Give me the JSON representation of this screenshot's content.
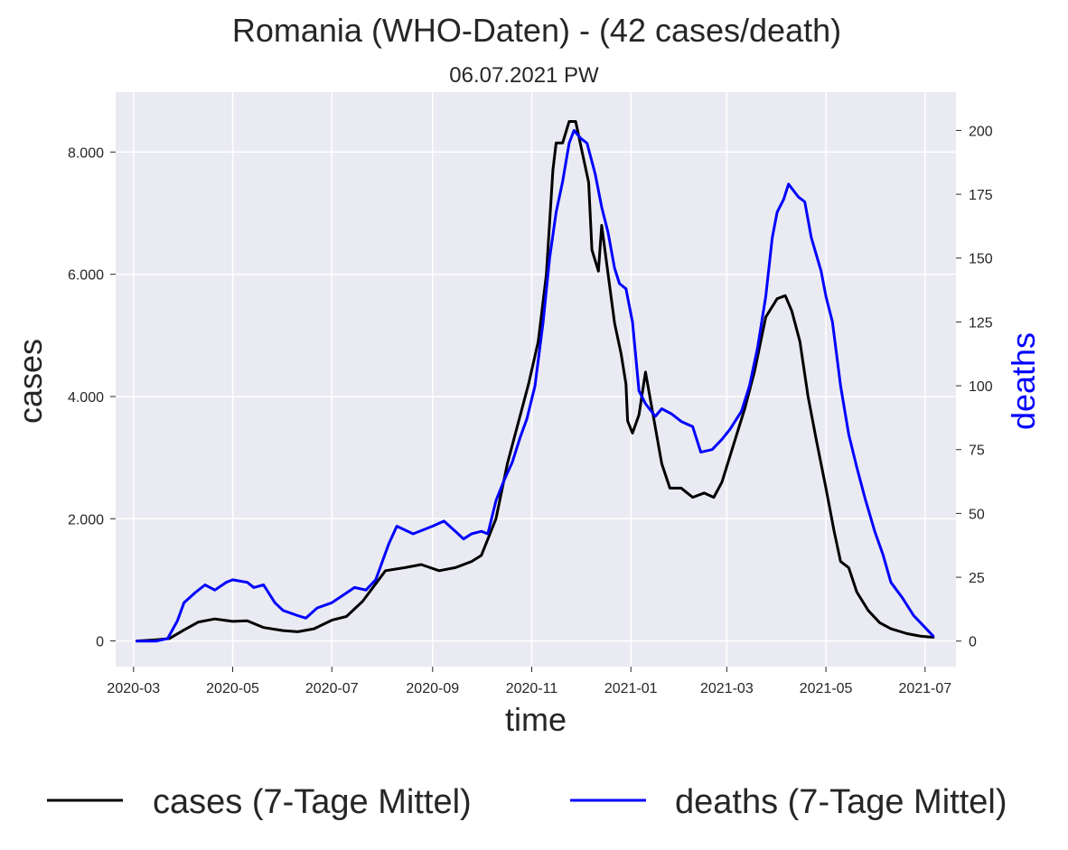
{
  "chart_data": {
    "type": "line",
    "title": "Romania (WHO-Daten) - (42 cases/death)",
    "subtitle": "06.07.2021 PW",
    "xlabel": "time",
    "ylabel": "cases",
    "y2label": "deaths",
    "x_ticks": [
      "2020-03",
      "2020-05",
      "2020-07",
      "2020-09",
      "2020-11",
      "2021-01",
      "2021-03",
      "2021-05",
      "2021-07"
    ],
    "y_ticks": [
      "0",
      "2.000",
      "4.000",
      "6.000",
      "8.000"
    ],
    "y_tick_values": [
      0,
      2000,
      4000,
      6000,
      8000
    ],
    "y2_ticks": [
      "0",
      "25",
      "50",
      "75",
      "100",
      "125",
      "150",
      "175",
      "200"
    ],
    "y2_tick_values": [
      0,
      25,
      50,
      75,
      100,
      125,
      150,
      175,
      200
    ],
    "xlim": [
      "2020-02-19",
      "2021-07-20"
    ],
    "ylim": [
      -420,
      8980
    ],
    "y2lim": [
      -10,
      215
    ],
    "grid": true,
    "legend_position": "bottom",
    "series": [
      {
        "name": "cases (7-Tage Mittel)",
        "axis": "left",
        "color": "#000000",
        "points": [
          [
            "2020-03-03",
            0
          ],
          [
            "2020-03-15",
            20
          ],
          [
            "2020-03-23",
            40
          ],
          [
            "2020-04-01",
            180
          ],
          [
            "2020-04-10",
            310
          ],
          [
            "2020-04-20",
            360
          ],
          [
            "2020-05-01",
            320
          ],
          [
            "2020-05-10",
            330
          ],
          [
            "2020-05-20",
            220
          ],
          [
            "2020-06-01",
            170
          ],
          [
            "2020-06-10",
            150
          ],
          [
            "2020-06-20",
            200
          ],
          [
            "2020-07-01",
            340
          ],
          [
            "2020-07-10",
            400
          ],
          [
            "2020-07-20",
            650
          ],
          [
            "2020-07-27",
            900
          ],
          [
            "2020-08-03",
            1150
          ],
          [
            "2020-08-15",
            1200
          ],
          [
            "2020-08-25",
            1250
          ],
          [
            "2020-09-05",
            1150
          ],
          [
            "2020-09-15",
            1200
          ],
          [
            "2020-09-25",
            1300
          ],
          [
            "2020-10-01",
            1400
          ],
          [
            "2020-10-10",
            2000
          ],
          [
            "2020-10-17",
            2900
          ],
          [
            "2020-10-25",
            3700
          ],
          [
            "2020-10-30",
            4200
          ],
          [
            "2020-11-05",
            4900
          ],
          [
            "2020-11-10",
            6000
          ],
          [
            "2020-11-14",
            7700
          ],
          [
            "2020-11-16",
            8150
          ],
          [
            "2020-11-20",
            8150
          ],
          [
            "2020-11-24",
            8500
          ],
          [
            "2020-11-28",
            8500
          ],
          [
            "2020-12-02",
            8000
          ],
          [
            "2020-12-06",
            7500
          ],
          [
            "2020-12-08",
            6400
          ],
          [
            "2020-12-12",
            6050
          ],
          [
            "2020-12-14",
            6800
          ],
          [
            "2020-12-18",
            6000
          ],
          [
            "2020-12-22",
            5200
          ],
          [
            "2020-12-26",
            4700
          ],
          [
            "2020-12-29",
            4200
          ],
          [
            "2020-12-30",
            3600
          ],
          [
            "2021-01-02",
            3400
          ],
          [
            "2021-01-06",
            3700
          ],
          [
            "2021-01-10",
            4400
          ],
          [
            "2021-01-14",
            3800
          ],
          [
            "2021-01-20",
            2900
          ],
          [
            "2021-01-25",
            2500
          ],
          [
            "2021-02-01",
            2500
          ],
          [
            "2021-02-08",
            2350
          ],
          [
            "2021-02-15",
            2420
          ],
          [
            "2021-02-21",
            2350
          ],
          [
            "2021-02-26",
            2600
          ],
          [
            "2021-03-05",
            3200
          ],
          [
            "2021-03-12",
            3800
          ],
          [
            "2021-03-18",
            4400
          ],
          [
            "2021-03-25",
            5300
          ],
          [
            "2021-04-01",
            5600
          ],
          [
            "2021-04-06",
            5650
          ],
          [
            "2021-04-10",
            5400
          ],
          [
            "2021-04-15",
            4900
          ],
          [
            "2021-04-20",
            4000
          ],
          [
            "2021-04-25",
            3300
          ],
          [
            "2021-05-01",
            2500
          ],
          [
            "2021-05-06",
            1800
          ],
          [
            "2021-05-10",
            1300
          ],
          [
            "2021-05-15",
            1200
          ],
          [
            "2021-05-20",
            800
          ],
          [
            "2021-05-27",
            500
          ],
          [
            "2021-06-03",
            300
          ],
          [
            "2021-06-10",
            200
          ],
          [
            "2021-06-20",
            120
          ],
          [
            "2021-06-28",
            80
          ],
          [
            "2021-07-06",
            60
          ]
        ]
      },
      {
        "name": "deaths (7-Tage Mittel)",
        "axis": "right",
        "color": "#0000ff",
        "points": [
          [
            "2020-03-03",
            0
          ],
          [
            "2020-03-15",
            0
          ],
          [
            "2020-03-22",
            1
          ],
          [
            "2020-03-28",
            8
          ],
          [
            "2020-04-01",
            15
          ],
          [
            "2020-04-08",
            19
          ],
          [
            "2020-04-14",
            22
          ],
          [
            "2020-04-20",
            20
          ],
          [
            "2020-04-27",
            23
          ],
          [
            "2020-05-01",
            24
          ],
          [
            "2020-05-10",
            23
          ],
          [
            "2020-05-14",
            21
          ],
          [
            "2020-05-20",
            22
          ],
          [
            "2020-05-27",
            15
          ],
          [
            "2020-06-01",
            12
          ],
          [
            "2020-06-10",
            10
          ],
          [
            "2020-06-15",
            9
          ],
          [
            "2020-06-22",
            13
          ],
          [
            "2020-07-01",
            15
          ],
          [
            "2020-07-08",
            18
          ],
          [
            "2020-07-15",
            21
          ],
          [
            "2020-07-22",
            20
          ],
          [
            "2020-07-28",
            24
          ],
          [
            "2020-08-05",
            38
          ],
          [
            "2020-08-10",
            45
          ],
          [
            "2020-08-20",
            42
          ],
          [
            "2020-09-01",
            45
          ],
          [
            "2020-09-08",
            47
          ],
          [
            "2020-09-15",
            43
          ],
          [
            "2020-09-20",
            40
          ],
          [
            "2020-09-25",
            42
          ],
          [
            "2020-10-01",
            43
          ],
          [
            "2020-10-05",
            42
          ],
          [
            "2020-10-10",
            55
          ],
          [
            "2020-10-15",
            63
          ],
          [
            "2020-10-20",
            70
          ],
          [
            "2020-10-25",
            80
          ],
          [
            "2020-10-29",
            87
          ],
          [
            "2020-11-03",
            100
          ],
          [
            "2020-11-08",
            125
          ],
          [
            "2020-11-12",
            150
          ],
          [
            "2020-11-16",
            168
          ],
          [
            "2020-11-20",
            180
          ],
          [
            "2020-11-24",
            195
          ],
          [
            "2020-11-27",
            200
          ],
          [
            "2020-12-01",
            197
          ],
          [
            "2020-12-05",
            195
          ],
          [
            "2020-12-10",
            183
          ],
          [
            "2020-12-14",
            170
          ],
          [
            "2020-12-18",
            160
          ],
          [
            "2020-12-22",
            146
          ],
          [
            "2020-12-25",
            140
          ],
          [
            "2020-12-29",
            138
          ],
          [
            "2021-01-02",
            125
          ],
          [
            "2021-01-06",
            98
          ],
          [
            "2021-01-10",
            93
          ],
          [
            "2021-01-16",
            88
          ],
          [
            "2021-01-20",
            91
          ],
          [
            "2021-01-26",
            89
          ],
          [
            "2021-02-01",
            86
          ],
          [
            "2021-02-08",
            84
          ],
          [
            "2021-02-13",
            74
          ],
          [
            "2021-02-20",
            75
          ],
          [
            "2021-02-26",
            79
          ],
          [
            "2021-03-03",
            83
          ],
          [
            "2021-03-10",
            90
          ],
          [
            "2021-03-15",
            100
          ],
          [
            "2021-03-20",
            115
          ],
          [
            "2021-03-25",
            135
          ],
          [
            "2021-03-29",
            158
          ],
          [
            "2021-04-01",
            168
          ],
          [
            "2021-04-05",
            173
          ],
          [
            "2021-04-08",
            179
          ],
          [
            "2021-04-14",
            174
          ],
          [
            "2021-04-18",
            172
          ],
          [
            "2021-04-22",
            158
          ],
          [
            "2021-04-28",
            145
          ],
          [
            "2021-05-01",
            135
          ],
          [
            "2021-05-05",
            125
          ],
          [
            "2021-05-10",
            100
          ],
          [
            "2021-05-15",
            81
          ],
          [
            "2021-05-20",
            68
          ],
          [
            "2021-05-25",
            56
          ],
          [
            "2021-05-31",
            43
          ],
          [
            "2021-06-05",
            34
          ],
          [
            "2021-06-10",
            23
          ],
          [
            "2021-06-17",
            17
          ],
          [
            "2021-06-24",
            10
          ],
          [
            "2021-06-30",
            6
          ],
          [
            "2021-07-06",
            2
          ]
        ]
      }
    ]
  }
}
